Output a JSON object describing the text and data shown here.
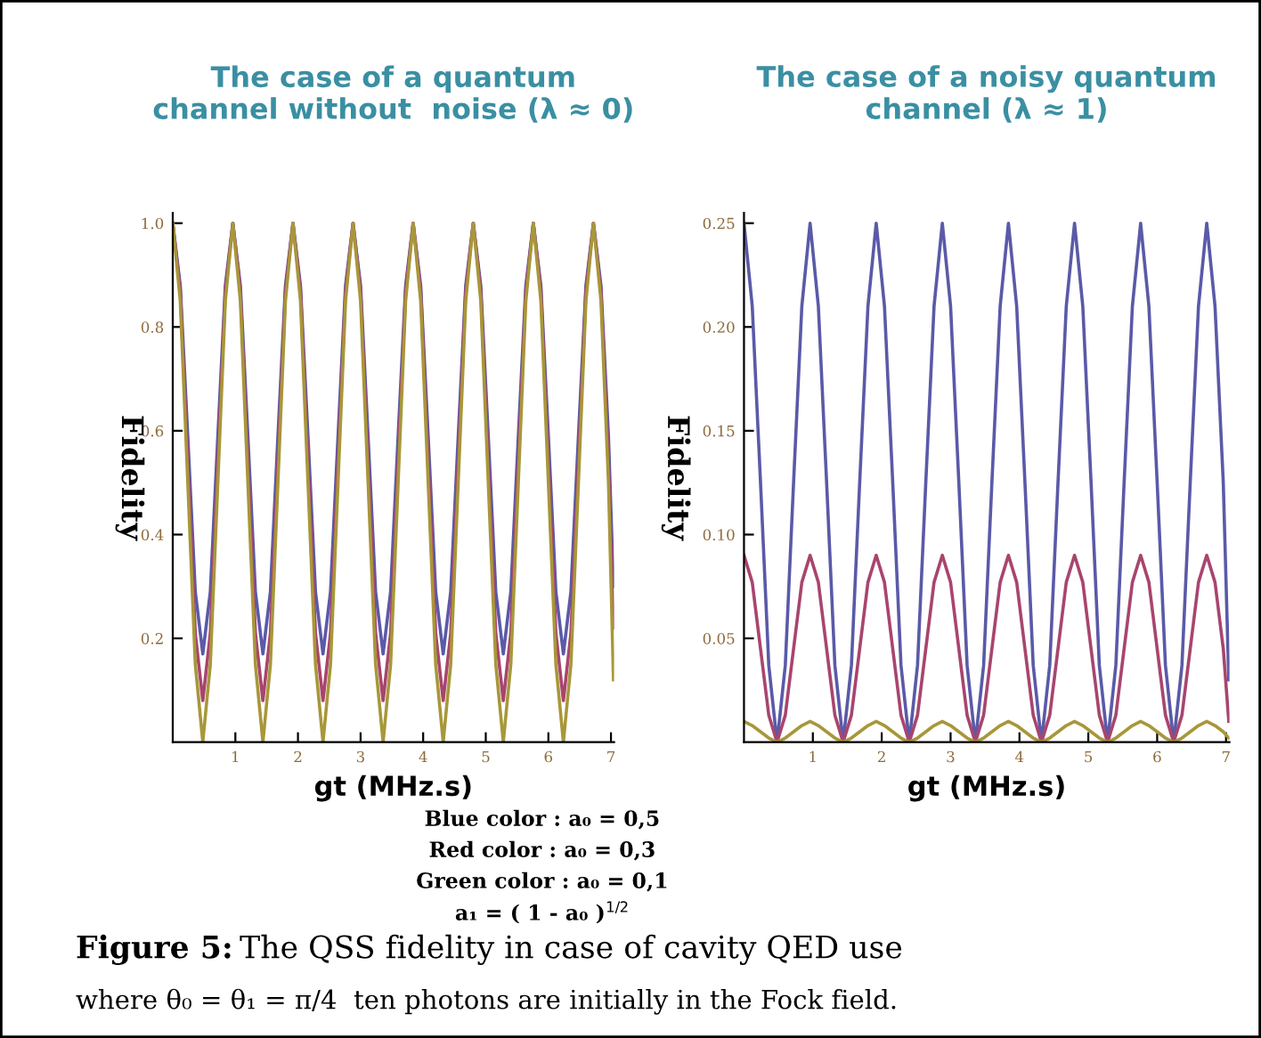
{
  "chart_data": [
    {
      "type": "line",
      "title": "The case of a quantum\nchannel without  noise (λ ≈ 0)",
      "xlabel": "gt (MHz.s)",
      "ylabel": "Fidelity",
      "x": [
        0,
        0.12,
        0.24,
        0.36,
        0.48,
        0.6,
        0.72,
        0.84,
        0.96,
        1.08,
        1.2,
        1.32,
        1.44,
        1.56,
        1.68,
        1.8,
        1.92,
        2.04,
        2.16,
        2.28,
        2.4,
        2.52,
        2.64,
        2.76,
        2.88,
        3.0,
        3.12,
        3.24,
        3.36,
        3.48,
        3.6,
        3.72,
        3.84,
        3.96,
        4.08,
        4.2,
        4.32,
        4.44,
        4.56,
        4.68,
        4.8,
        4.92,
        5.04,
        5.16,
        5.28,
        5.4,
        5.52,
        5.64,
        5.76,
        5.88,
        6.0,
        6.12,
        6.24,
        6.36,
        6.48,
        6.6,
        6.72,
        6.84,
        6.96,
        7.04
      ],
      "xlim": [
        0,
        7.05
      ],
      "xticks": [
        1,
        2,
        3,
        4,
        5,
        6,
        7
      ],
      "ylim": [
        0,
        1.02
      ],
      "yticks": [
        0.2,
        0.4,
        0.6,
        0.8,
        {
          "value": 1.0,
          "label": "1.0"
        }
      ],
      "grid": false,
      "legend": false,
      "marker": "none",
      "line_style": "solid",
      "series": [
        {
          "color": "#5a5aa8",
          "values": [
            1,
            0.88,
            0.59,
            0.29,
            0.17,
            0.29,
            0.59,
            0.88,
            1,
            0.88,
            0.59,
            0.29,
            0.17,
            0.29,
            0.59,
            0.88,
            1,
            0.88,
            0.59,
            0.29,
            0.17,
            0.29,
            0.59,
            0.88,
            1,
            0.88,
            0.59,
            0.29,
            0.17,
            0.29,
            0.59,
            0.88,
            1,
            0.88,
            0.59,
            0.29,
            0.17,
            0.29,
            0.59,
            0.88,
            1,
            0.88,
            0.59,
            0.29,
            0.17,
            0.29,
            0.59,
            0.88,
            1,
            0.88,
            0.59,
            0.29,
            0.17,
            0.29,
            0.59,
            0.88,
            1,
            0.88,
            0.59,
            0.3
          ]
        },
        {
          "color": "#a8456e",
          "values": [
            1,
            0.87,
            0.54,
            0.21,
            0.08,
            0.21,
            0.54,
            0.87,
            1,
            0.87,
            0.54,
            0.21,
            0.08,
            0.21,
            0.54,
            0.87,
            1,
            0.87,
            0.54,
            0.21,
            0.08,
            0.21,
            0.54,
            0.87,
            1,
            0.87,
            0.54,
            0.21,
            0.08,
            0.21,
            0.54,
            0.87,
            1,
            0.87,
            0.54,
            0.21,
            0.08,
            0.21,
            0.54,
            0.87,
            1,
            0.87,
            0.54,
            0.21,
            0.08,
            0.21,
            0.54,
            0.87,
            1,
            0.87,
            0.54,
            0.21,
            0.08,
            0.21,
            0.54,
            0.87,
            1,
            0.87,
            0.54,
            0.22
          ]
        },
        {
          "color": "#a8973a",
          "values": [
            1,
            0.85,
            0.5,
            0.15,
            0,
            0.15,
            0.5,
            0.85,
            1,
            0.85,
            0.5,
            0.15,
            0,
            0.15,
            0.5,
            0.85,
            1,
            0.85,
            0.5,
            0.15,
            0,
            0.15,
            0.5,
            0.85,
            1,
            0.85,
            0.5,
            0.15,
            0,
            0.15,
            0.5,
            0.85,
            1,
            0.85,
            0.5,
            0.15,
            0,
            0.15,
            0.5,
            0.85,
            1,
            0.85,
            0.5,
            0.15,
            0,
            0.15,
            0.5,
            0.85,
            1,
            0.85,
            0.5,
            0.15,
            0,
            0.15,
            0.5,
            0.85,
            1,
            0.85,
            0.5,
            0.12
          ]
        }
      ]
    },
    {
      "type": "line",
      "title": "The case of a noisy quantum\nchannel (λ ≈ 1)",
      "xlabel": "gt (MHz.s)",
      "ylabel": "Fidelity",
      "x": [
        0,
        0.12,
        0.24,
        0.36,
        0.48,
        0.6,
        0.72,
        0.84,
        0.96,
        1.08,
        1.2,
        1.32,
        1.44,
        1.56,
        1.68,
        1.8,
        1.92,
        2.04,
        2.16,
        2.28,
        2.4,
        2.52,
        2.64,
        2.76,
        2.88,
        3.0,
        3.12,
        3.24,
        3.36,
        3.48,
        3.6,
        3.72,
        3.84,
        3.96,
        4.08,
        4.2,
        4.32,
        4.44,
        4.56,
        4.68,
        4.8,
        4.92,
        5.04,
        5.16,
        5.28,
        5.4,
        5.52,
        5.64,
        5.76,
        5.88,
        6.0,
        6.12,
        6.24,
        6.36,
        6.48,
        6.6,
        6.72,
        6.84,
        6.96,
        7.04
      ],
      "xlim": [
        0,
        7.05
      ],
      "xticks": [
        1,
        2,
        3,
        4,
        5,
        6,
        7
      ],
      "ylim": [
        0,
        0.255
      ],
      "yticks": [
        {
          "value": 0.05,
          "label": "0.05"
        },
        {
          "value": 0.1,
          "label": "0.10"
        },
        {
          "value": 0.15,
          "label": "0.15"
        },
        {
          "value": 0.2,
          "label": "0.20"
        },
        {
          "value": 0.25,
          "label": "0.25"
        }
      ],
      "grid": false,
      "legend": false,
      "marker": "none",
      "line_style": "solid",
      "series": [
        {
          "color": "#5a5aa8",
          "values": [
            0.25,
            0.21,
            0.125,
            0.037,
            0,
            0.037,
            0.125,
            0.21,
            0.25,
            0.21,
            0.125,
            0.037,
            0,
            0.037,
            0.125,
            0.21,
            0.25,
            0.21,
            0.125,
            0.037,
            0,
            0.037,
            0.125,
            0.21,
            0.25,
            0.21,
            0.125,
            0.037,
            0,
            0.037,
            0.125,
            0.21,
            0.25,
            0.21,
            0.125,
            0.037,
            0,
            0.037,
            0.125,
            0.21,
            0.25,
            0.21,
            0.125,
            0.037,
            0,
            0.037,
            0.125,
            0.21,
            0.25,
            0.21,
            0.125,
            0.037,
            0,
            0.037,
            0.125,
            0.21,
            0.25,
            0.21,
            0.125,
            0.03
          ]
        },
        {
          "color": "#a8456e",
          "values": [
            0.09,
            0.077,
            0.045,
            0.013,
            0,
            0.013,
            0.045,
            0.077,
            0.09,
            0.077,
            0.045,
            0.013,
            0,
            0.013,
            0.045,
            0.077,
            0.09,
            0.077,
            0.045,
            0.013,
            0,
            0.013,
            0.045,
            0.077,
            0.09,
            0.077,
            0.045,
            0.013,
            0,
            0.013,
            0.045,
            0.077,
            0.09,
            0.077,
            0.045,
            0.013,
            0,
            0.013,
            0.045,
            0.077,
            0.09,
            0.077,
            0.045,
            0.013,
            0,
            0.013,
            0.045,
            0.077,
            0.09,
            0.077,
            0.045,
            0.013,
            0,
            0.013,
            0.045,
            0.077,
            0.09,
            0.077,
            0.045,
            0.01
          ]
        },
        {
          "color": "#a8973a",
          "values": [
            0.01,
            0.008,
            0.005,
            0.002,
            0,
            0.002,
            0.005,
            0.008,
            0.01,
            0.008,
            0.005,
            0.002,
            0,
            0.002,
            0.005,
            0.008,
            0.01,
            0.008,
            0.005,
            0.002,
            0,
            0.002,
            0.005,
            0.008,
            0.01,
            0.008,
            0.005,
            0.002,
            0,
            0.002,
            0.005,
            0.008,
            0.01,
            0.008,
            0.005,
            0.002,
            0,
            0.002,
            0.005,
            0.008,
            0.01,
            0.008,
            0.005,
            0.002,
            0,
            0.002,
            0.005,
            0.008,
            0.01,
            0.008,
            0.005,
            0.002,
            0,
            0.002,
            0.005,
            0.008,
            0.01,
            0.008,
            0.005,
            0.002
          ]
        }
      ],
      "annotations": [
        "Blue color : a₀ = 0,5",
        "Red color : a₀ = 0,3",
        "Green color : a₀ = 0,1",
        "a₁ = ( 1 - a₀ )$^{1/2}$",
        "Figure 5:",
        "The QSS fidelity in case of cavity QED use",
        "where θ₀ = θ₁ = π/4  ten photons are initially in the Fock field."
      ]
    }
  ]
}
